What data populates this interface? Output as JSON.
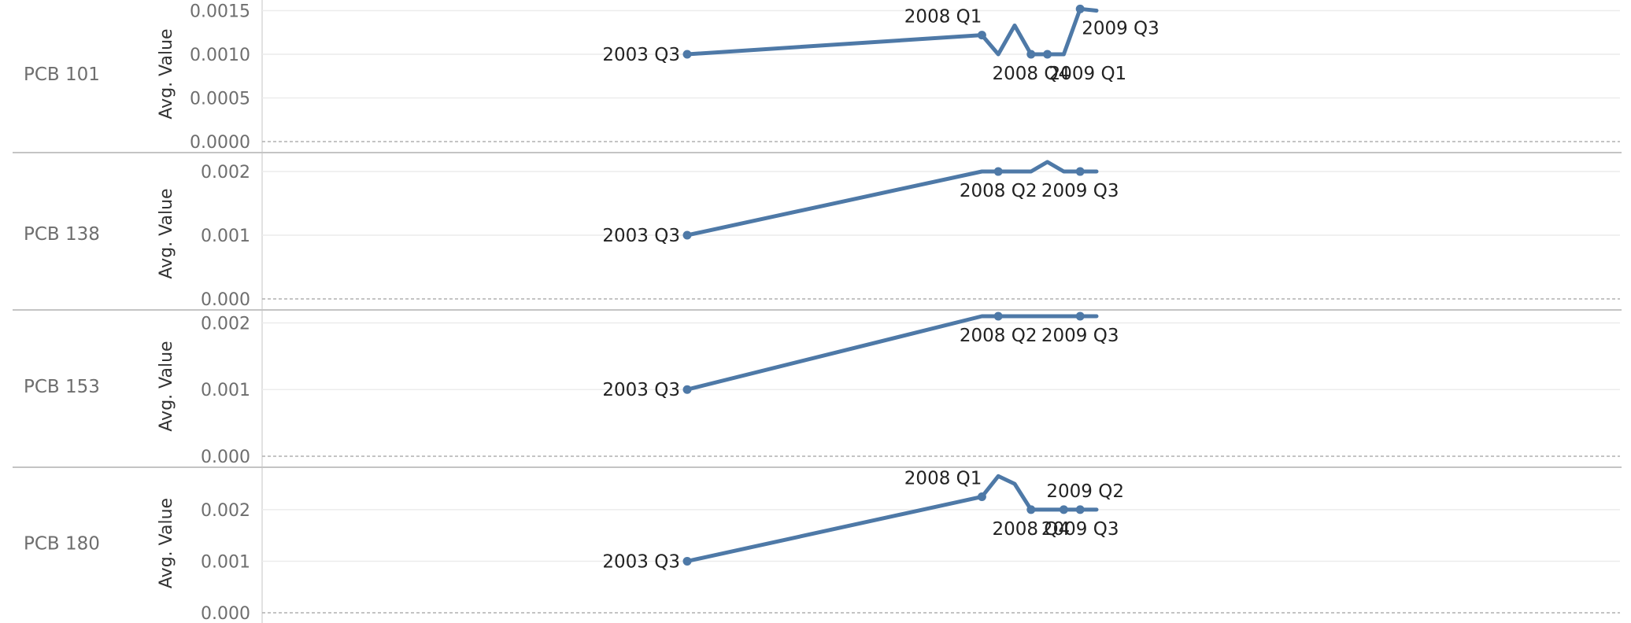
{
  "axis_title": "Avg. Value",
  "chart_data": [
    {
      "type": "line",
      "row_label": "PCB 101",
      "ylabel": "Avg. Value",
      "ylim": [
        0,
        0.00155
      ],
      "yticks": [
        0.0,
        0.0005,
        0.001,
        0.0015
      ],
      "ytick_labels": [
        "0.0000",
        "0.0005",
        "0.0010",
        "0.0015"
      ],
      "points": [
        {
          "q": "2003 Q3",
          "y": 0.001,
          "label": "2003 Q3",
          "marker": true,
          "pos": "left"
        },
        {
          "q": "2008 Q1",
          "y": 0.00122,
          "label": "2008 Q1",
          "marker": true,
          "pos": "above-left"
        },
        {
          "q": "2008 Q2",
          "y": 0.001,
          "label": null,
          "marker": false
        },
        {
          "q": "2008 Q3",
          "y": 0.00133,
          "label": null,
          "marker": false
        },
        {
          "q": "2008 Q4",
          "y": 0.001,
          "label": "2008 Q4",
          "marker": true,
          "pos": "below"
        },
        {
          "q": "2009 Q1",
          "y": 0.001,
          "label": "2009 Q1",
          "marker": true,
          "pos": "below-right"
        },
        {
          "q": "2009 Q2",
          "y": 0.001,
          "label": null,
          "marker": false
        },
        {
          "q": "2009 Q3",
          "y": 0.00152,
          "label": "2009 Q3",
          "marker": true,
          "pos": "below-right"
        },
        {
          "q": "2009 Q4",
          "y": 0.0015,
          "label": null,
          "marker": false
        }
      ]
    },
    {
      "type": "line",
      "row_label": "PCB 138",
      "ylabel": "Avg. Value",
      "ylim": [
        0,
        0.00205
      ],
      "yticks": [
        0.0,
        0.001,
        0.002
      ],
      "ytick_labels": [
        "0.000",
        "0.001",
        "0.002"
      ],
      "points": [
        {
          "q": "2003 Q3",
          "y": 0.001,
          "label": "2003 Q3",
          "marker": true,
          "pos": "left"
        },
        {
          "q": "2008 Q1",
          "y": 0.002,
          "label": null,
          "marker": false
        },
        {
          "q": "2008 Q2",
          "y": 0.002,
          "label": "2008 Q2",
          "marker": true,
          "pos": "below"
        },
        {
          "q": "2008 Q3",
          "y": 0.002,
          "label": null,
          "marker": false
        },
        {
          "q": "2008 Q4",
          "y": 0.002,
          "label": null,
          "marker": false
        },
        {
          "q": "2009 Q1",
          "y": 0.00215,
          "label": null,
          "marker": false
        },
        {
          "q": "2009 Q2",
          "y": 0.002,
          "label": null,
          "marker": false
        },
        {
          "q": "2009 Q3",
          "y": 0.002,
          "label": "2009 Q3",
          "marker": true,
          "pos": "below"
        },
        {
          "q": "2009 Q4",
          "y": 0.002,
          "label": null,
          "marker": false
        }
      ]
    },
    {
      "type": "line",
      "row_label": "PCB 153",
      "ylabel": "Avg. Value",
      "ylim": [
        0,
        0.0021
      ],
      "yticks": [
        0.0,
        0.001,
        0.002
      ],
      "ytick_labels": [
        "0.000",
        "0.001",
        "0.002"
      ],
      "points": [
        {
          "q": "2003 Q3",
          "y": 0.001,
          "label": "2003 Q3",
          "marker": true,
          "pos": "left"
        },
        {
          "q": "2008 Q1",
          "y": 0.0021,
          "label": null,
          "marker": false
        },
        {
          "q": "2008 Q2",
          "y": 0.0021,
          "label": "2008 Q2",
          "marker": true,
          "pos": "below"
        },
        {
          "q": "2008 Q3",
          "y": 0.0021,
          "label": null,
          "marker": false
        },
        {
          "q": "2008 Q4",
          "y": 0.0021,
          "label": null,
          "marker": false
        },
        {
          "q": "2009 Q1",
          "y": 0.0021,
          "label": null,
          "marker": false
        },
        {
          "q": "2009 Q2",
          "y": 0.0021,
          "label": null,
          "marker": false
        },
        {
          "q": "2009 Q3",
          "y": 0.0021,
          "label": "2009 Q3",
          "marker": true,
          "pos": "below"
        },
        {
          "q": "2009 Q4",
          "y": 0.0021,
          "label": null,
          "marker": false
        }
      ]
    },
    {
      "type": "line",
      "row_label": "PCB 180",
      "ylabel": "Avg. Value",
      "ylim": [
        0,
        0.0027
      ],
      "yticks": [
        0.0,
        0.001,
        0.002
      ],
      "ytick_labels": [
        "0.000",
        "0.001",
        "0.002"
      ],
      "points": [
        {
          "q": "2003 Q3",
          "y": 0.001,
          "label": "2003 Q3",
          "marker": true,
          "pos": "left"
        },
        {
          "q": "2008 Q1",
          "y": 0.00225,
          "label": "2008 Q1",
          "marker": true,
          "pos": "above-left"
        },
        {
          "q": "2008 Q2",
          "y": 0.00265,
          "label": null,
          "marker": false
        },
        {
          "q": "2008 Q3",
          "y": 0.0025,
          "label": null,
          "marker": false
        },
        {
          "q": "2008 Q4",
          "y": 0.002,
          "label": "2008 Q4",
          "marker": true,
          "pos": "below"
        },
        {
          "q": "2009 Q1",
          "y": 0.002,
          "label": null,
          "marker": false
        },
        {
          "q": "2009 Q2",
          "y": 0.002,
          "label": "2009 Q2",
          "marker": true,
          "pos": "above-right"
        },
        {
          "q": "2009 Q3",
          "y": 0.002,
          "label": "2009 Q3",
          "marker": true,
          "pos": "below"
        },
        {
          "q": "2009 Q4",
          "y": 0.002,
          "label": null,
          "marker": false
        }
      ]
    }
  ],
  "colors": {
    "series": "#4e79a7",
    "gridline": "#ececec",
    "divider": "#c4c4c4"
  }
}
